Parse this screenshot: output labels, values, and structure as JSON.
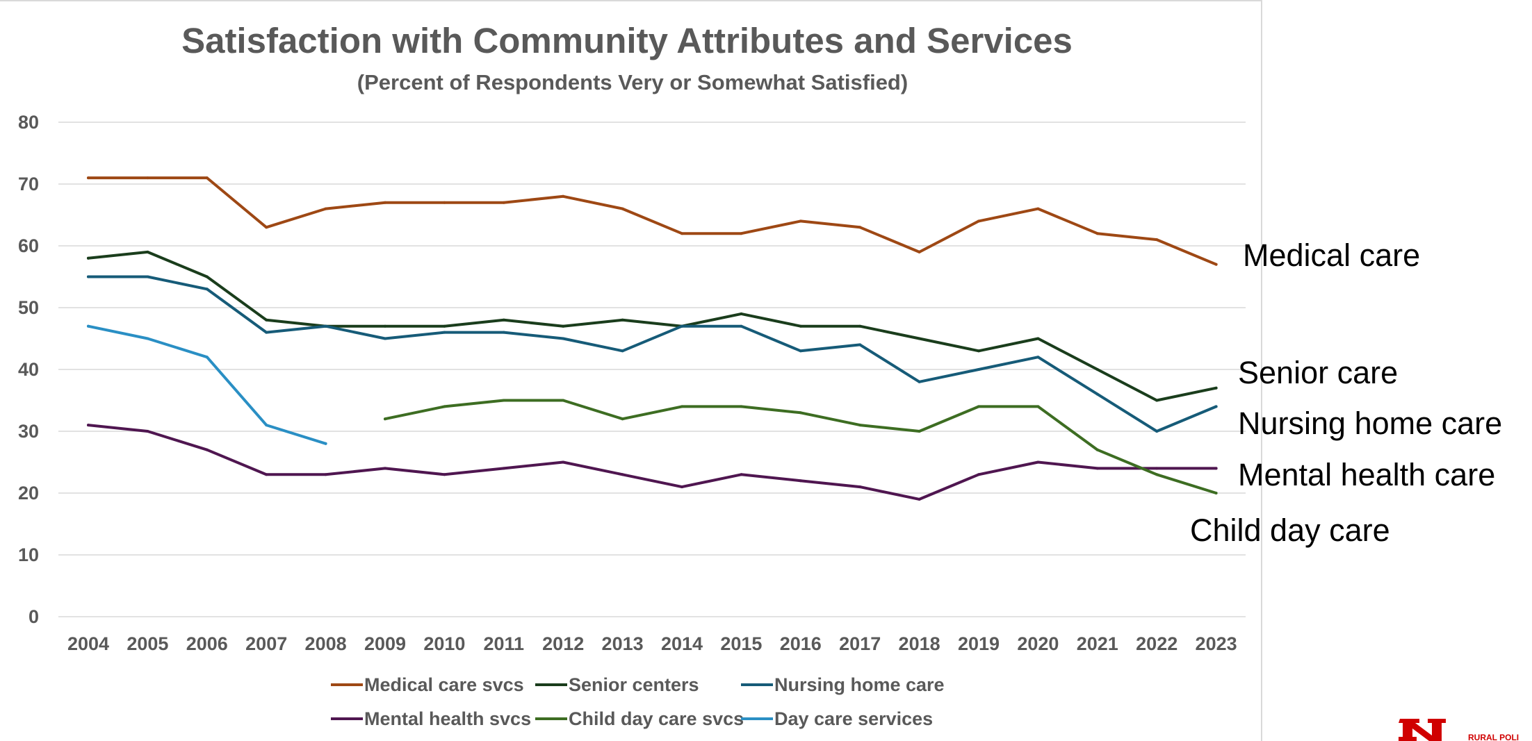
{
  "chart_data": {
    "type": "line",
    "title": "Satisfaction with Community Attributes and Services",
    "subtitle": "(Percent of Respondents Very or Somewhat Satisfied)",
    "x": [
      "2004",
      "2005",
      "2006",
      "2007",
      "2008",
      "2009",
      "2010",
      "2011",
      "2012",
      "2013",
      "2014",
      "2015",
      "2016",
      "2017",
      "2018",
      "2019",
      "2020",
      "2021",
      "2022",
      "2023"
    ],
    "ylim": [
      0,
      80
    ],
    "yticks": [
      0,
      10,
      20,
      30,
      40,
      50,
      60,
      70,
      80
    ],
    "grid": true,
    "legend_position": "bottom",
    "series": [
      {
        "name": "Medical care svcs",
        "color": "#9e4814",
        "values": [
          71,
          71,
          71,
          63,
          66,
          67,
          67,
          67,
          68,
          66,
          62,
          62,
          64,
          63,
          59,
          64,
          66,
          62,
          61,
          57
        ]
      },
      {
        "name": "Senior centers",
        "color": "#1a3d1c",
        "values": [
          58,
          59,
          55,
          48,
          47,
          47,
          47,
          48,
          47,
          48,
          47,
          49,
          47,
          47,
          45,
          43,
          45,
          40,
          35,
          37
        ]
      },
      {
        "name": "Nursing home care",
        "color": "#165b78",
        "values": [
          55,
          55,
          53,
          46,
          47,
          45,
          46,
          46,
          45,
          43,
          47,
          47,
          43,
          44,
          38,
          40,
          42,
          36,
          30,
          34
        ]
      },
      {
        "name": "Mental health svcs",
        "color": "#4f1650",
        "values": [
          31,
          30,
          27,
          23,
          23,
          24,
          23,
          24,
          25,
          23,
          21,
          23,
          22,
          21,
          19,
          23,
          25,
          24,
          24,
          24
        ]
      },
      {
        "name": "Child day care svcs",
        "color": "#3d6d22",
        "values": [
          null,
          null,
          null,
          null,
          null,
          32,
          34,
          35,
          35,
          32,
          34,
          34,
          33,
          31,
          30,
          34,
          34,
          27,
          23,
          20
        ]
      },
      {
        "name": "Day care services",
        "color": "#2a8fc4",
        "values": [
          47,
          45,
          42,
          31,
          28,
          null,
          null,
          null,
          null,
          null,
          null,
          null,
          null,
          null,
          null,
          null,
          null,
          null,
          null,
          null
        ]
      }
    ],
    "annotations": [
      "Medical care",
      "Senior care",
      "Nursing home care",
      "Mental health care",
      "Child day care"
    ]
  },
  "logo": {
    "text": "RURAL POLI"
  }
}
